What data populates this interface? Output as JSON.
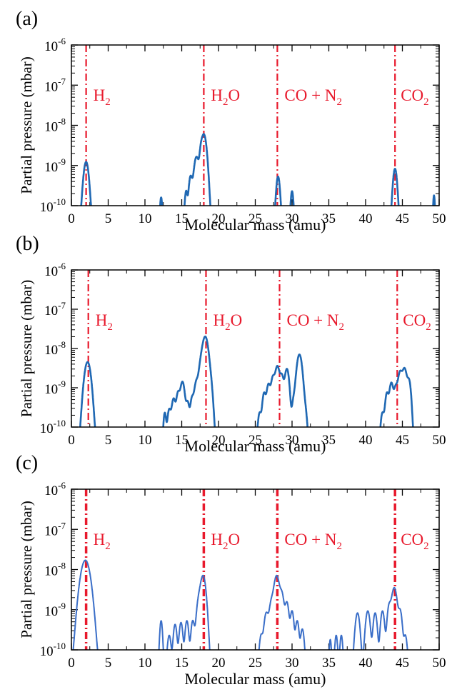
{
  "chart_data": [
    {
      "type": "line",
      "panel_label": "(a)",
      "xlabel": "Molecular mass (amu)",
      "ylabel": "Partial pressure (mbar)",
      "xlim": [
        0,
        50
      ],
      "ylim": [
        1e-10,
        1e-06
      ],
      "yscale": "log",
      "x_ticks": [
        "0",
        "5",
        "10",
        "15",
        "20",
        "25",
        "30",
        "35",
        "40",
        "45",
        "50"
      ],
      "y_ticks": [
        {
          "base": "10",
          "exp": "-6"
        },
        {
          "base": "10",
          "exp": "-7"
        },
        {
          "base": "10",
          "exp": "-8"
        },
        {
          "base": "10",
          "exp": "-9"
        },
        {
          "base": "10",
          "exp": "-10"
        }
      ],
      "reference_lines": [
        {
          "x": 2,
          "label": "H",
          "sub": "2",
          "rest": ""
        },
        {
          "x": 18,
          "label": "H",
          "sub": "2",
          "rest": "O"
        },
        {
          "x": 28,
          "label": "CO + N",
          "sub": "2",
          "rest": ""
        },
        {
          "x": 44,
          "label": "CO",
          "sub": "2",
          "rest": ""
        }
      ],
      "peaks": [
        {
          "x": 2.0,
          "y": 1.2e-09,
          "w": 0.28
        },
        {
          "x": 12.2,
          "y": 1.3e-10,
          "w": 0.12
        },
        {
          "x": 15.6,
          "y": 2e-10,
          "w": 0.15
        },
        {
          "x": 16.2,
          "y": 5e-10,
          "w": 0.2
        },
        {
          "x": 17.0,
          "y": 1.6e-09,
          "w": 0.28
        },
        {
          "x": 17.6,
          "y": 1e-09,
          "w": 0.15
        },
        {
          "x": 18.0,
          "y": 6e-09,
          "w": 0.3
        },
        {
          "x": 28.1,
          "y": 5e-10,
          "w": 0.2
        },
        {
          "x": 30.0,
          "y": 2e-10,
          "w": 0.15
        },
        {
          "x": 44.0,
          "y": 8e-10,
          "w": 0.22
        },
        {
          "x": 49.3,
          "y": 1.5e-10,
          "w": 0.1
        }
      ],
      "color": "#1f68b3",
      "ref_color": "#e8192c"
    },
    {
      "type": "line",
      "panel_label": "(b)",
      "xlabel": "Molecular mass (amu)",
      "ylabel": "Partial pressure (mbar)",
      "xlim": [
        0,
        50
      ],
      "ylim": [
        1e-10,
        1e-06
      ],
      "yscale": "log",
      "x_ticks": [
        "0",
        "5",
        "10",
        "15",
        "20",
        "25",
        "30",
        "35",
        "40",
        "45",
        "50"
      ],
      "y_ticks": [
        {
          "base": "10",
          "exp": "-6"
        },
        {
          "base": "10",
          "exp": "-7"
        },
        {
          "base": "10",
          "exp": "-8"
        },
        {
          "base": "10",
          "exp": "-9"
        },
        {
          "base": "10",
          "exp": "-10"
        }
      ],
      "reference_lines": [
        {
          "x": 2.3,
          "label": "H",
          "sub": "2",
          "rest": ""
        },
        {
          "x": 18.3,
          "label": "H",
          "sub": "2",
          "rest": "O"
        },
        {
          "x": 28.3,
          "label": "CO + N",
          "sub": "2",
          "rest": ""
        },
        {
          "x": 44.3,
          "label": "CO",
          "sub": "2",
          "rest": ""
        }
      ],
      "peaks": [
        {
          "x": 2.2,
          "y": 4.5e-09,
          "w": 0.35
        },
        {
          "x": 12.7,
          "y": 2e-10,
          "w": 0.15
        },
        {
          "x": 13.3,
          "y": 2.5e-10,
          "w": 0.2
        },
        {
          "x": 13.9,
          "y": 5e-10,
          "w": 0.22
        },
        {
          "x": 14.5,
          "y": 7e-10,
          "w": 0.2
        },
        {
          "x": 15.1,
          "y": 1.4e-09,
          "w": 0.25
        },
        {
          "x": 15.8,
          "y": 4e-10,
          "w": 0.2
        },
        {
          "x": 16.4,
          "y": 5e-10,
          "w": 0.2
        },
        {
          "x": 17.0,
          "y": 1.4e-09,
          "w": 0.25
        },
        {
          "x": 17.6,
          "y": 3e-09,
          "w": 0.25
        },
        {
          "x": 18.2,
          "y": 2e-08,
          "w": 0.33
        },
        {
          "x": 18.9,
          "y": 1e-09,
          "w": 0.25
        },
        {
          "x": 25.6,
          "y": 2e-10,
          "w": 0.2
        },
        {
          "x": 26.2,
          "y": 7e-10,
          "w": 0.2
        },
        {
          "x": 26.8,
          "y": 1.2e-09,
          "w": 0.22
        },
        {
          "x": 27.4,
          "y": 1.8e-09,
          "w": 0.22
        },
        {
          "x": 28.0,
          "y": 3.5e-09,
          "w": 0.25
        },
        {
          "x": 28.6,
          "y": 2e-09,
          "w": 0.22
        },
        {
          "x": 29.3,
          "y": 3e-09,
          "w": 0.25
        },
        {
          "x": 30.2,
          "y": 4e-10,
          "w": 0.2
        },
        {
          "x": 31.0,
          "y": 7e-09,
          "w": 0.3
        },
        {
          "x": 31.8,
          "y": 2e-10,
          "w": 0.2
        },
        {
          "x": 42.3,
          "y": 2e-10,
          "w": 0.2
        },
        {
          "x": 42.9,
          "y": 7e-10,
          "w": 0.2
        },
        {
          "x": 43.5,
          "y": 1.3e-09,
          "w": 0.22
        },
        {
          "x": 44.1,
          "y": 1e-09,
          "w": 0.22
        },
        {
          "x": 44.7,
          "y": 2.5e-09,
          "w": 0.25
        },
        {
          "x": 45.3,
          "y": 3e-09,
          "w": 0.25
        },
        {
          "x": 45.9,
          "y": 1.5e-09,
          "w": 0.22
        }
      ],
      "color": "#1f68b3",
      "ref_color": "#e8192c"
    },
    {
      "type": "line",
      "panel_label": "(c)",
      "xlabel": "Molecular mass (amu)",
      "ylabel": "Partial pressure (mbar)",
      "xlim": [
        0,
        50
      ],
      "ylim": [
        1e-10,
        1e-06
      ],
      "yscale": "log",
      "x_ticks": [
        "0",
        "5",
        "10",
        "15",
        "20",
        "25",
        "30",
        "35",
        "40",
        "45",
        "50"
      ],
      "y_ticks": [
        {
          "base": "10",
          "exp": "-6"
        },
        {
          "base": "10",
          "exp": "-7"
        },
        {
          "base": "10",
          "exp": "-8"
        },
        {
          "base": "10",
          "exp": "-9"
        },
        {
          "base": "10",
          "exp": "-10"
        }
      ],
      "reference_lines": [
        {
          "x": 2,
          "label": "H",
          "sub": "2",
          "rest": ""
        },
        {
          "x": 18,
          "label": "H",
          "sub": "2",
          "rest": "O"
        },
        {
          "x": 28,
          "label": "CO + N",
          "sub": "2",
          "rest": ""
        },
        {
          "x": 44,
          "label": "CO",
          "sub": "2",
          "rest": ""
        }
      ],
      "peaks": [
        {
          "x": 1.9,
          "y": 1.7e-08,
          "w": 0.5
        },
        {
          "x": 12.2,
          "y": 5e-10,
          "w": 0.15
        },
        {
          "x": 13.3,
          "y": 2e-10,
          "w": 0.2
        },
        {
          "x": 14.1,
          "y": 4e-10,
          "w": 0.2
        },
        {
          "x": 14.9,
          "y": 4.5e-10,
          "w": 0.2
        },
        {
          "x": 15.7,
          "y": 5e-10,
          "w": 0.2
        },
        {
          "x": 16.5,
          "y": 5e-10,
          "w": 0.2
        },
        {
          "x": 17.3,
          "y": 1.5e-09,
          "w": 0.25
        },
        {
          "x": 17.9,
          "y": 7e-09,
          "w": 0.3
        },
        {
          "x": 25.8,
          "y": 2e-10,
          "w": 0.2
        },
        {
          "x": 26.5,
          "y": 8e-10,
          "w": 0.25
        },
        {
          "x": 27.2,
          "y": 1.5e-09,
          "w": 0.25
        },
        {
          "x": 27.9,
          "y": 7e-09,
          "w": 0.3
        },
        {
          "x": 28.6,
          "y": 2.5e-09,
          "w": 0.25
        },
        {
          "x": 29.3,
          "y": 1.5e-09,
          "w": 0.22
        },
        {
          "x": 30.0,
          "y": 9e-10,
          "w": 0.2
        },
        {
          "x": 30.7,
          "y": 5e-10,
          "w": 0.2
        },
        {
          "x": 31.4,
          "y": 3e-10,
          "w": 0.2
        },
        {
          "x": 35.2,
          "y": 1.5e-10,
          "w": 0.12
        },
        {
          "x": 36.0,
          "y": 2e-10,
          "w": 0.15
        },
        {
          "x": 36.7,
          "y": 2e-10,
          "w": 0.15
        },
        {
          "x": 38.9,
          "y": 8e-10,
          "w": 0.25
        },
        {
          "x": 40.3,
          "y": 9e-10,
          "w": 0.25
        },
        {
          "x": 41.3,
          "y": 8e-10,
          "w": 0.22
        },
        {
          "x": 42.3,
          "y": 9e-10,
          "w": 0.22
        },
        {
          "x": 43.2,
          "y": 1.2e-09,
          "w": 0.22
        },
        {
          "x": 43.9,
          "y": 3.5e-09,
          "w": 0.3
        },
        {
          "x": 44.7,
          "y": 9e-10,
          "w": 0.22
        },
        {
          "x": 45.4,
          "y": 2e-10,
          "w": 0.2
        }
      ],
      "color": "#3a6ec8",
      "ref_color": "#e8192c"
    }
  ]
}
